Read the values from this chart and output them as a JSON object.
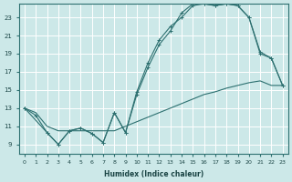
{
  "xlabel": "Humidex (Indice chaleur)",
  "bg_color": "#cce8e8",
  "grid_color": "#ffffff",
  "line_color": "#2d7070",
  "xlim": [
    -0.5,
    23.5
  ],
  "ylim": [
    8.0,
    24.5
  ],
  "xticks": [
    0,
    1,
    2,
    3,
    4,
    5,
    6,
    7,
    8,
    9,
    10,
    11,
    12,
    13,
    14,
    15,
    16,
    17,
    18,
    19,
    20,
    21,
    22,
    23
  ],
  "yticks": [
    9,
    11,
    13,
    15,
    17,
    19,
    21,
    23
  ],
  "series1_x": [
    0,
    1,
    2,
    3,
    4,
    5,
    6,
    7,
    8,
    9,
    10,
    11,
    12,
    13,
    14,
    15,
    16,
    17,
    18,
    19,
    20,
    21,
    22,
    23
  ],
  "series1_y": [
    13.0,
    12.5,
    11.0,
    10.5,
    10.5,
    10.5,
    10.5,
    10.5,
    10.5,
    11.0,
    11.5,
    12.0,
    12.5,
    13.0,
    13.5,
    14.0,
    14.5,
    14.8,
    15.2,
    15.5,
    15.8,
    16.0,
    15.5,
    15.5
  ],
  "series2_x": [
    0,
    1,
    2,
    3,
    4,
    5,
    6,
    7,
    8,
    9,
    10,
    11,
    12,
    13,
    14,
    15,
    16,
    17,
    18,
    19,
    20,
    21,
    22,
    23
  ],
  "series2_y": [
    13.0,
    12.2,
    10.3,
    9.0,
    10.5,
    10.8,
    10.2,
    9.2,
    12.5,
    10.3,
    14.8,
    18.0,
    20.5,
    22.0,
    23.0,
    24.3,
    24.5,
    24.3,
    24.5,
    24.3,
    23.0,
    19.2,
    18.5,
    15.5
  ],
  "series3_x": [
    0,
    2,
    3,
    4,
    5,
    6,
    7,
    8,
    9,
    10,
    11,
    12,
    13,
    14,
    15,
    16,
    17,
    18,
    19,
    20,
    21,
    22,
    23
  ],
  "series3_y": [
    13.0,
    10.3,
    9.0,
    10.5,
    10.8,
    10.2,
    9.2,
    12.5,
    10.3,
    14.5,
    17.5,
    20.0,
    21.5,
    23.5,
    24.5,
    24.5,
    24.3,
    24.5,
    24.3,
    23.0,
    19.0,
    18.5,
    15.5
  ]
}
